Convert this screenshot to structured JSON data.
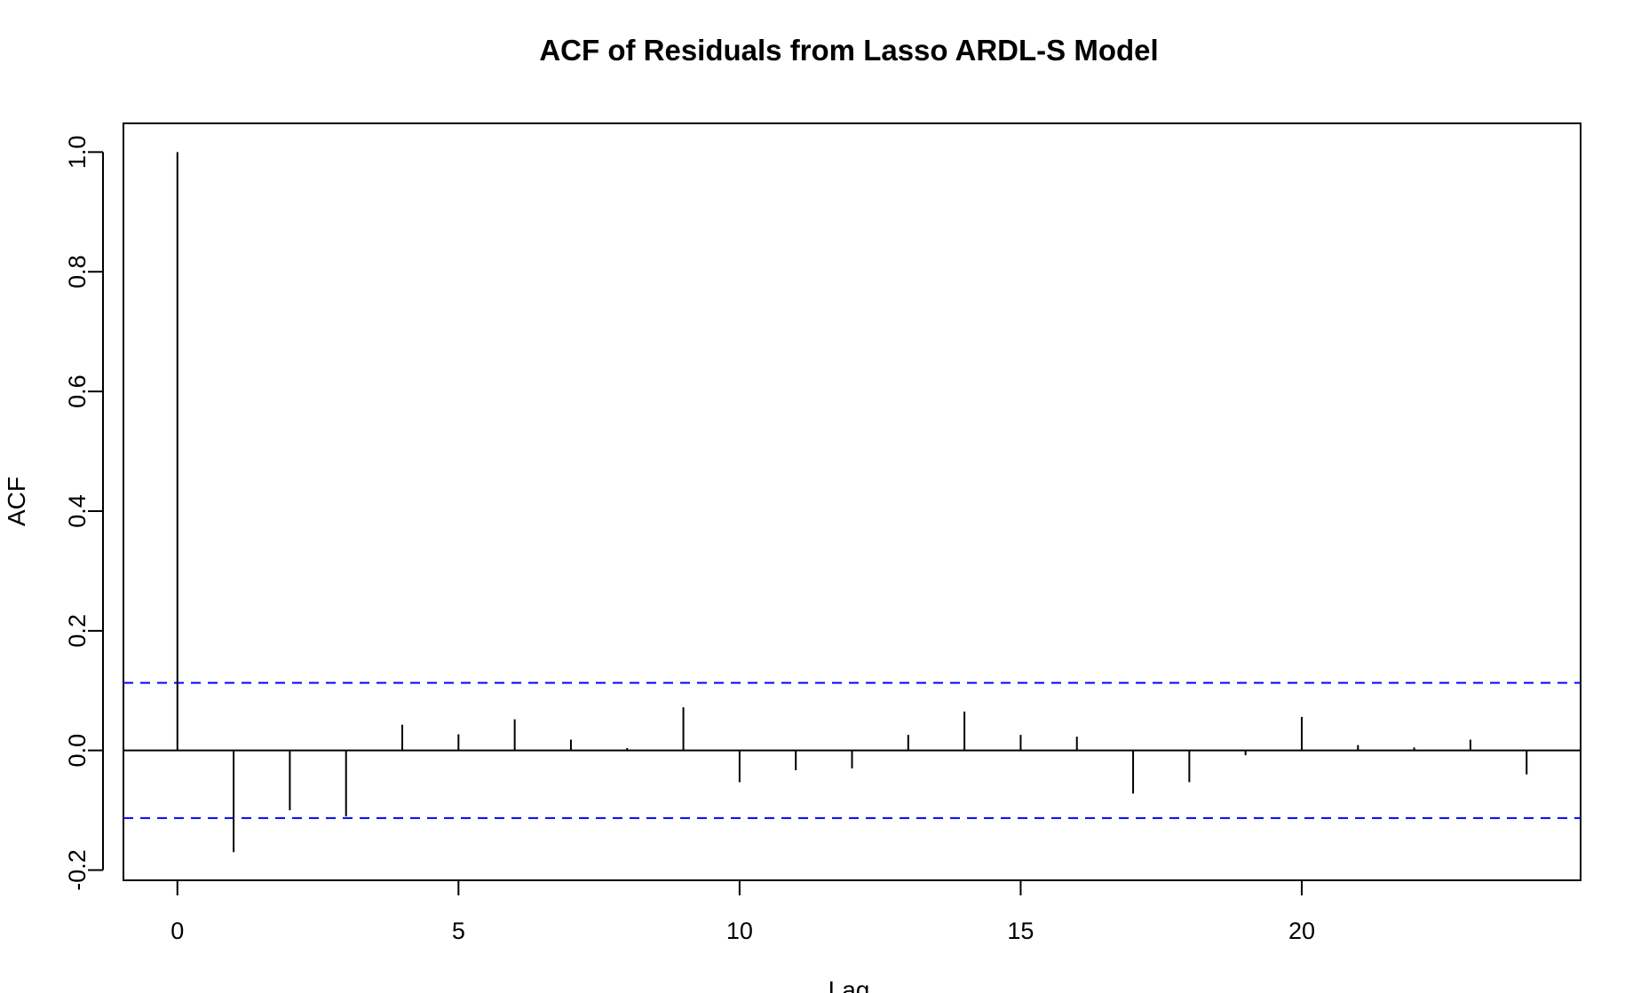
{
  "chart_data": {
    "type": "bar",
    "title": "ACF of Residuals from Lasso ARDL-S Model",
    "xlabel": "Lag",
    "ylabel": "ACF",
    "x": [
      0,
      1,
      2,
      3,
      4,
      5,
      6,
      7,
      8,
      9,
      10,
      11,
      12,
      13,
      14,
      15,
      16,
      17,
      18,
      19,
      20,
      21,
      22,
      23,
      24
    ],
    "values": [
      1.0,
      -0.17,
      -0.1,
      -0.11,
      0.043,
      0.027,
      0.052,
      0.018,
      0.004,
      0.072,
      -0.053,
      -0.033,
      -0.03,
      0.026,
      0.065,
      0.026,
      0.023,
      -0.072,
      -0.053,
      -0.008,
      0.056,
      0.009,
      0.005,
      0.018,
      -0.04
    ],
    "confidence_bound": 0.113,
    "xlim": [
      -0.96,
      24.96
    ],
    "ylim": [
      -0.217,
      1.048
    ],
    "x_ticks": [
      0,
      5,
      10,
      15,
      20
    ],
    "x_tick_labels": [
      "0",
      "5",
      "10",
      "15",
      "20"
    ],
    "y_ticks": [
      -0.2,
      0.0,
      0.2,
      0.4,
      0.6,
      0.8,
      1.0
    ],
    "y_tick_labels": [
      "-0.2",
      "0.0",
      "0.2",
      "0.4",
      "0.6",
      "0.8",
      "1.0"
    ],
    "grid": false,
    "colors": {
      "bars": "#000000",
      "confidence_lines": "#0000ff",
      "zero_line": "#000000"
    }
  }
}
